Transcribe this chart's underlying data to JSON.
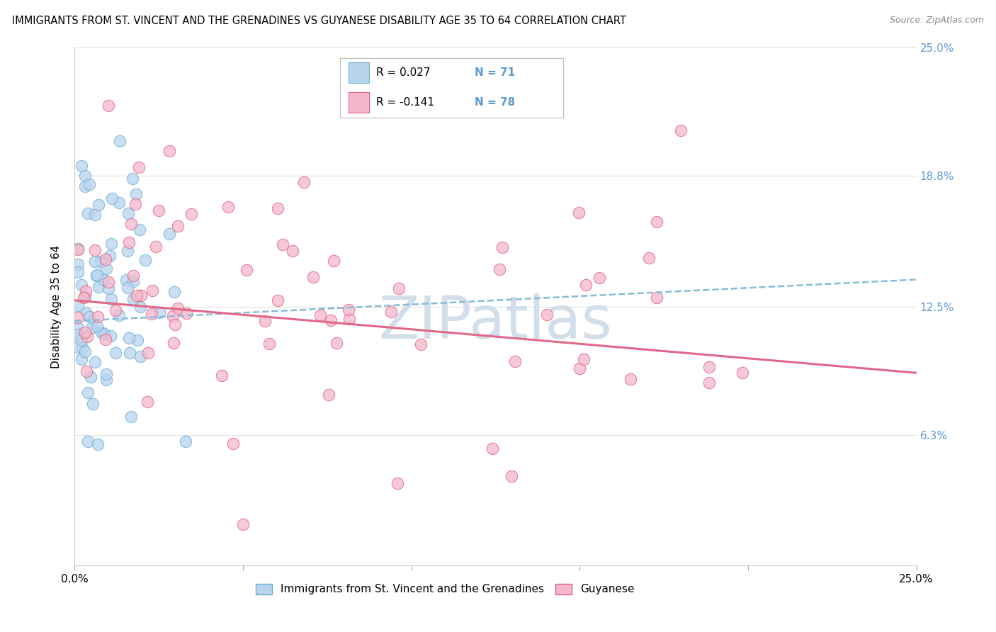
{
  "title": "IMMIGRANTS FROM ST. VINCENT AND THE GRENADINES VS GUYANESE DISABILITY AGE 35 TO 64 CORRELATION CHART",
  "source": "Source: ZipAtlas.com",
  "ylabel": "Disability Age 35 to 64",
  "xlim": [
    0.0,
    0.25
  ],
  "ylim": [
    0.0,
    0.25
  ],
  "ytick_labels_right": [
    "6.3%",
    "12.5%",
    "18.8%",
    "25.0%"
  ],
  "ytick_values_right": [
    0.063,
    0.125,
    0.188,
    0.25
  ],
  "legend_r1": "R = 0.027",
  "legend_n1": "N = 71",
  "legend_r2": "R = -0.141",
  "legend_n2": "N = 78",
  "legend_label1": "Immigrants from St. Vincent and the Grenadines",
  "legend_label2": "Guyanese",
  "color_blue_fill": "#b8d4ec",
  "color_blue_edge": "#6aaed6",
  "color_pink_fill": "#f5b8cb",
  "color_pink_edge": "#e06080",
  "color_trend_blue": "#88bbd8",
  "color_trend_pink": "#e06888",
  "color_right_axis": "#5b9bd5",
  "watermark": "ZIPatlas",
  "watermark_color": "#ccd9e8",
  "grid_color": "#e0e0e0",
  "r1": 0.027,
  "r2": -0.141,
  "n1": 71,
  "n2": 78,
  "blue_trend_x0": 0.0,
  "blue_trend_y0": 0.118,
  "blue_trend_x1": 0.25,
  "blue_trend_y1": 0.138,
  "pink_trend_x0": 0.0,
  "pink_trend_y0": 0.128,
  "pink_trend_x1": 0.25,
  "pink_trend_y1": 0.093
}
